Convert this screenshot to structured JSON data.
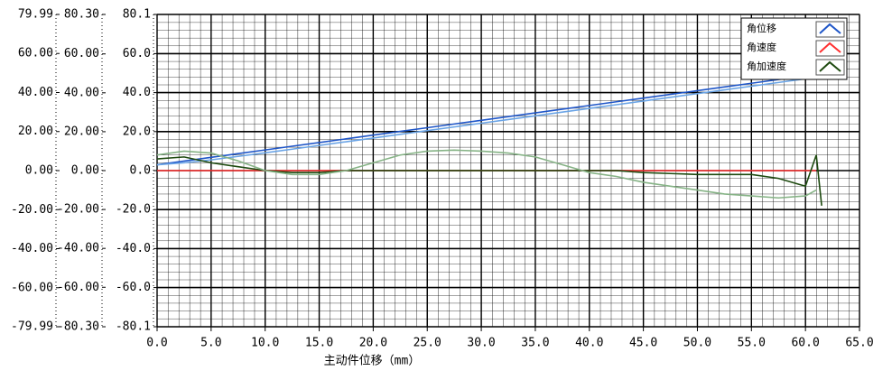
{
  "chart_data": {
    "type": "line",
    "xlabel": "主动件位移（mm）",
    "xlim": [
      0,
      65
    ],
    "xticks": [
      {
        "value": 0,
        "label": "0.0"
      },
      {
        "value": 5,
        "label": "5.0"
      },
      {
        "value": 10,
        "label": "10.0"
      },
      {
        "value": 15,
        "label": "15.0"
      },
      {
        "value": 20,
        "label": "20.0"
      },
      {
        "value": 25,
        "label": "25.0"
      },
      {
        "value": 30,
        "label": "30.0"
      },
      {
        "value": 35,
        "label": "35.0"
      },
      {
        "value": 40,
        "label": "40.0"
      },
      {
        "value": 45,
        "label": "45.0"
      },
      {
        "value": 50,
        "label": "50.0"
      },
      {
        "value": 55,
        "label": "55.0"
      },
      {
        "value": 60,
        "label": "60.0"
      },
      {
        "value": 65,
        "label": "65.0"
      }
    ],
    "y_axes": [
      {
        "ylim": [
          -79.99,
          79.99
        ],
        "yticks": [
          79.99,
          {
            "value": 60,
            "label": "60.00"
          },
          {
            "value": 40,
            "label": "40.00"
          },
          {
            "value": 20,
            "label": "20.00"
          },
          {
            "value": 0,
            "label": "0.00"
          },
          {
            "value": -20,
            "label": "-20.00"
          },
          {
            "value": -40,
            "label": "-40.00"
          },
          {
            "value": -60,
            "label": "-60.00"
          },
          -79.99
        ]
      },
      {
        "ylim": [
          -80.3,
          80.3
        ],
        "yticks": [
          {
            "value": 80.3,
            "label": "80.30"
          },
          {
            "value": 60,
            "label": "60.00"
          },
          {
            "value": 40,
            "label": "40.00"
          },
          {
            "value": 20,
            "label": "20.00"
          },
          {
            "value": 0,
            "label": "0.00"
          },
          {
            "value": -20,
            "label": "-20.00"
          },
          {
            "value": -40,
            "label": "-40.00"
          },
          {
            "value": -60,
            "label": "-60.00"
          },
          {
            "value": -80.3,
            "label": "-80.30"
          }
        ]
      },
      {
        "ylim": [
          -80.1,
          80.1
        ],
        "yticks": [
          80.1,
          {
            "value": 60,
            "label": "60.0"
          },
          {
            "value": 40,
            "label": "40.0"
          },
          {
            "value": 20,
            "label": "20.0"
          },
          {
            "value": 0,
            "label": "0.0"
          },
          {
            "value": -20,
            "label": "-20.0"
          },
          {
            "value": -40,
            "label": "-40.0"
          },
          {
            "value": -60,
            "label": "-60.0"
          },
          -80.1
        ]
      }
    ],
    "grid": true,
    "legend": "top-right",
    "x": [
      0,
      2.5,
      5,
      7.5,
      10,
      12.5,
      15,
      17.5,
      20,
      22.5,
      25,
      27.5,
      30,
      32.5,
      35,
      37.5,
      40,
      42.5,
      45,
      47.5,
      50,
      52.5,
      55,
      57.5,
      60,
      61,
      61.5
    ],
    "series": [
      {
        "name": "角位移",
        "color": "#1f56c8",
        "values": [
          3,
          4.9,
          6.8,
          8.7,
          10.6,
          12.5,
          14.4,
          16.3,
          18.2,
          20.1,
          22,
          23.9,
          25.8,
          27.7,
          29.6,
          31.5,
          33.4,
          35.3,
          37.2,
          39.1,
          41,
          42.9,
          44.8,
          46.7,
          48.6,
          49.4,
          null
        ]
      },
      {
        "color": "#6aa4e6",
        "values": [
          3,
          4,
          5.5,
          7.3,
          9.1,
          11,
          12.9,
          14.8,
          16.7,
          18.6,
          20.5,
          22.4,
          24.3,
          26.2,
          28.1,
          30,
          31.9,
          33.8,
          35.7,
          37.6,
          39.5,
          41.4,
          43.3,
          45.2,
          47.1,
          47.9,
          null
        ]
      },
      {
        "name": "角速度",
        "color": "#ff3030",
        "values": [
          0,
          0,
          0,
          0,
          0,
          0,
          0,
          0,
          0,
          0,
          0,
          0,
          0,
          0,
          0,
          0,
          0,
          0,
          0,
          0,
          0,
          0,
          0,
          0,
          0,
          0,
          null
        ]
      },
      {
        "name": "角加速度",
        "color": "#1e4a10",
        "values": [
          6,
          7,
          4,
          2,
          0,
          -1,
          -1,
          0,
          0,
          0,
          0,
          0,
          0,
          0,
          0,
          0,
          0,
          0,
          -1,
          -1.5,
          -2,
          -2,
          -2,
          -4,
          -8,
          8,
          -18
        ]
      },
      {
        "color": "#86b386",
        "values": [
          8,
          10,
          9,
          5,
          0,
          -2,
          -2,
          0,
          4,
          8,
          10,
          10.5,
          10,
          9,
          7,
          3,
          -1,
          -3,
          -6,
          -8,
          -10,
          -12,
          -13,
          -14,
          -13,
          -10,
          null
        ]
      }
    ]
  }
}
